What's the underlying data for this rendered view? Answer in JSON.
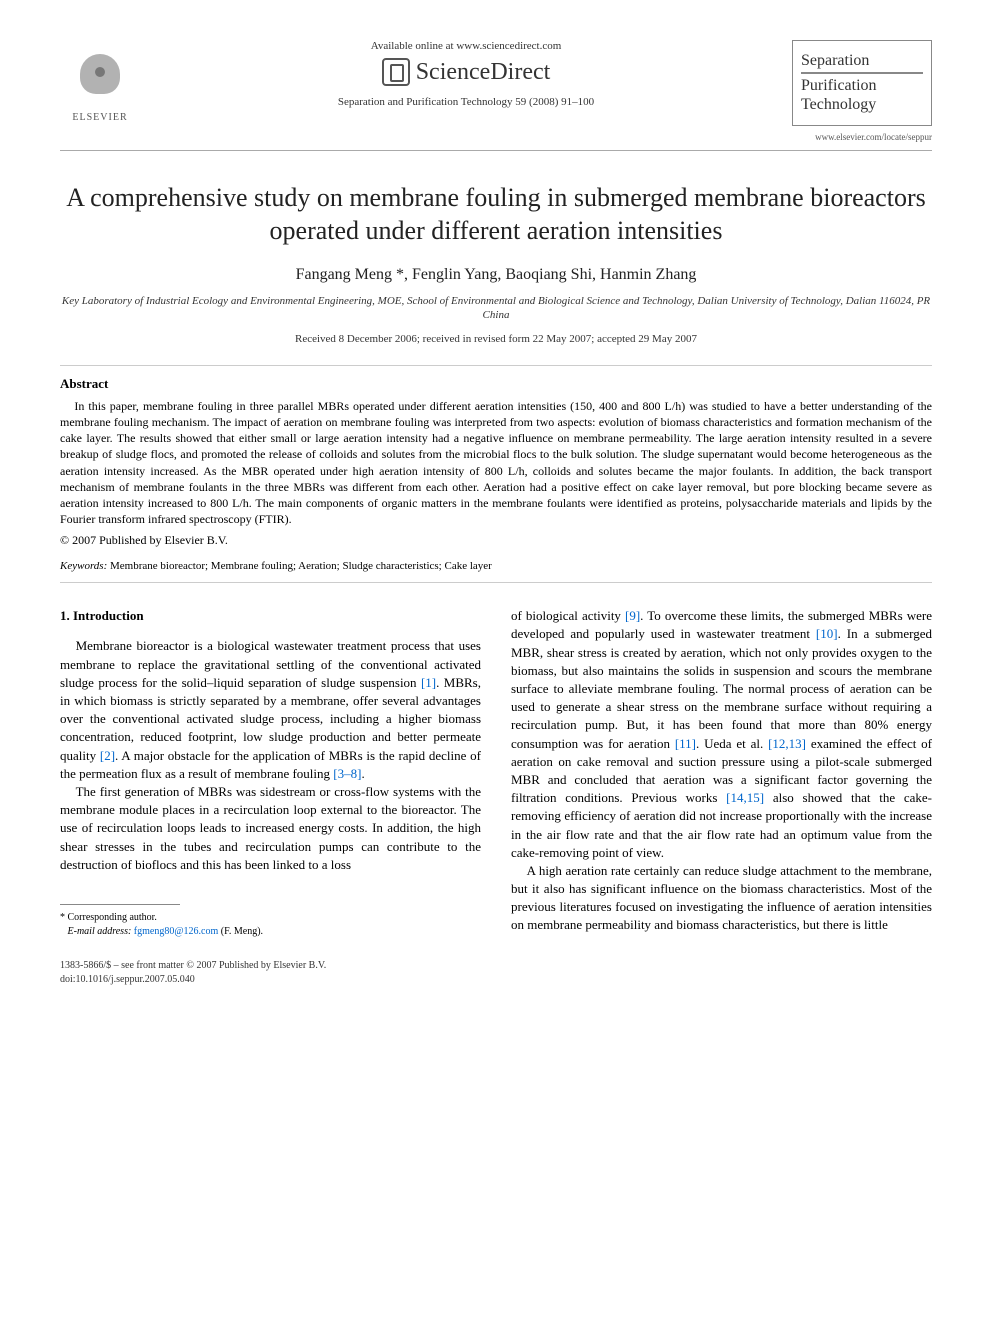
{
  "header": {
    "publisher_logo_text": "ELSEVIER",
    "available_online": "Available online at www.sciencedirect.com",
    "sciencedirect_text": "ScienceDirect",
    "citation": "Separation and Purification Technology 59 (2008) 91–100",
    "journal_box_line1": "Separation",
    "journal_box_line2": "Purification",
    "journal_box_line3": "Technology",
    "journal_url": "www.elsevier.com/locate/seppur"
  },
  "title": "A comprehensive study on membrane fouling in submerged membrane bioreactors operated under different aeration intensities",
  "authors": "Fangang Meng *, Fenglin Yang, Baoqiang Shi, Hanmin Zhang",
  "affiliation": "Key Laboratory of Industrial Ecology and Environmental Engineering, MOE, School of Environmental and Biological Science and Technology, Dalian University of Technology, Dalian 116024, PR China",
  "dates": "Received 8 December 2006; received in revised form 22 May 2007; accepted 29 May 2007",
  "abstract": {
    "heading": "Abstract",
    "text": "In this paper, membrane fouling in three parallel MBRs operated under different aeration intensities (150, 400 and 800 L/h) was studied to have a better understanding of the membrane fouling mechanism. The impact of aeration on membrane fouling was interpreted from two aspects: evolution of biomass characteristics and formation mechanism of the cake layer. The results showed that either small or large aeration intensity had a negative influence on membrane permeability. The large aeration intensity resulted in a severe breakup of sludge flocs, and promoted the release of colloids and solutes from the microbial flocs to the bulk solution. The sludge supernatant would become heterogeneous as the aeration intensity increased. As the MBR operated under high aeration intensity of 800 L/h, colloids and solutes became the major foulants. In addition, the back transport mechanism of membrane foulants in the three MBRs was different from each other. Aeration had a positive effect on cake layer removal, but pore blocking became severe as aeration intensity increased to 800 L/h. The main components of organic matters in the membrane foulants were identified as proteins, polysaccharide materials and lipids by the Fourier transform infrared spectroscopy (FTIR).",
    "copyright": "© 2007 Published by Elsevier B.V."
  },
  "keywords": {
    "label": "Keywords:",
    "text": "Membrane bioreactor; Membrane fouling; Aeration; Sludge characteristics; Cake layer"
  },
  "body": {
    "section_heading": "1. Introduction",
    "col1_para1_a": "Membrane bioreactor is a biological wastewater treatment process that uses membrane to replace the gravitational settling of the conventional activated sludge process for the solid–liquid separation of sludge suspension ",
    "col1_para1_ref1": "[1]",
    "col1_para1_b": ". MBRs, in which biomass is strictly separated by a membrane, offer several advantages over the conventional activated sludge process, including a higher biomass concentration, reduced footprint, low sludge production and better permeate quality ",
    "col1_para1_ref2": "[2]",
    "col1_para1_c": ". A major obstacle for the application of MBRs is the rapid decline of the permeation flux as a result of membrane fouling ",
    "col1_para1_ref3": "[3–8]",
    "col1_para1_d": ".",
    "col1_para2": "The first generation of MBRs was sidestream or cross-flow systems with the membrane module places in a recirculation loop external to the bioreactor. The use of recirculation loops leads to increased energy costs. In addition, the high shear stresses in the tubes and recirculation pumps can contribute to the destruction of bioflocs and this has been linked to a loss",
    "col2_para1_a": "of biological activity ",
    "col2_para1_ref1": "[9]",
    "col2_para1_b": ". To overcome these limits, the submerged MBRs were developed and popularly used in wastewater treatment ",
    "col2_para1_ref2": "[10]",
    "col2_para1_c": ". In a submerged MBR, shear stress is created by aeration, which not only provides oxygen to the biomass, but also maintains the solids in suspension and scours the membrane surface to alleviate membrane fouling. The normal process of aeration can be used to generate a shear stress on the membrane surface without requiring a recirculation pump. But, it has been found that more than 80% energy consumption was for aeration ",
    "col2_para1_ref3": "[11]",
    "col2_para1_d": ". Ueda et al. ",
    "col2_para1_ref4": "[12,13]",
    "col2_para1_e": " examined the effect of aeration on cake removal and suction pressure using a pilot-scale submerged MBR and concluded that aeration was a significant factor governing the filtration conditions. Previous works ",
    "col2_para1_ref5": "[14,15]",
    "col2_para1_f": " also showed that the cake-removing efficiency of aeration did not increase proportionally with the increase in the air flow rate and that the air flow rate had an optimum value from the cake-removing point of view.",
    "col2_para2": "A high aeration rate certainly can reduce sludge attachment to the membrane, but it also has significant influence on the biomass characteristics. Most of the previous literatures focused on investigating the influence of aeration intensities on membrane permeability and biomass characteristics, but there is little"
  },
  "footnote": {
    "corresp": "* Corresponding author.",
    "email_label": "E-mail address:",
    "email": "fgmeng80@126.com",
    "email_suffix": "(F. Meng)."
  },
  "footer": {
    "line1": "1383-5866/$ – see front matter © 2007 Published by Elsevier B.V.",
    "line2": "doi:10.1016/j.seppur.2007.05.040"
  }
}
